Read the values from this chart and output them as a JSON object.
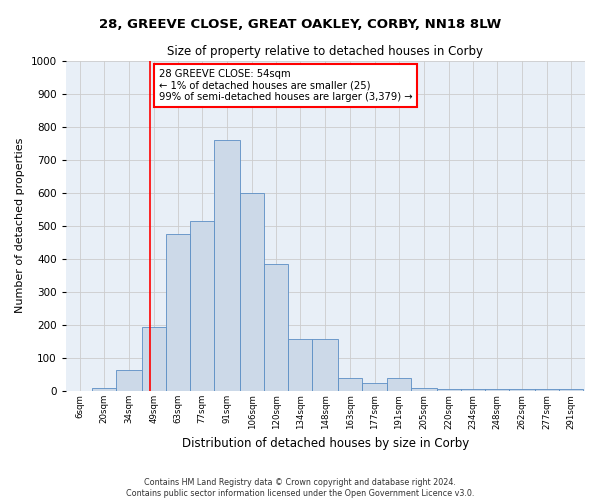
{
  "title1": "28, GREEVE CLOSE, GREAT OAKLEY, CORBY, NN18 8LW",
  "title2": "Size of property relative to detached houses in Corby",
  "xlabel": "Distribution of detached houses by size in Corby",
  "ylabel": "Number of detached properties",
  "bar_labels": [
    "6sqm",
    "20sqm",
    "34sqm",
    "49sqm",
    "63sqm",
    "77sqm",
    "91sqm",
    "106sqm",
    "120sqm",
    "134sqm",
    "148sqm",
    "163sqm",
    "177sqm",
    "191sqm",
    "205sqm",
    "220sqm",
    "234sqm",
    "248sqm",
    "262sqm",
    "277sqm",
    "291sqm"
  ],
  "histogram_values": [
    0,
    10,
    65,
    195,
    475,
    515,
    760,
    600,
    385,
    158,
    158,
    38,
    25,
    40,
    10,
    5,
    5,
    5,
    5,
    5,
    5
  ],
  "bar_edges": [
    6,
    20,
    34,
    49,
    63,
    77,
    91,
    106,
    120,
    134,
    148,
    163,
    177,
    191,
    205,
    220,
    234,
    248,
    262,
    277,
    291,
    305
  ],
  "bar_color": "#ccd9e8",
  "bar_edge_color": "#5b8ec4",
  "red_line_x": 54,
  "annotation_line1": "28 GREEVE CLOSE: 54sqm",
  "annotation_line2": "← 1% of detached houses are smaller (25)",
  "annotation_line3": "99% of semi-detached houses are larger (3,379) →",
  "annotation_box_color": "white",
  "annotation_box_edge": "red",
  "grid_color": "#cccccc",
  "bg_color": "#e8eff7",
  "fig_color": "white",
  "footer1": "Contains HM Land Registry data © Crown copyright and database right 2024.",
  "footer2": "Contains public sector information licensed under the Open Government Licence v3.0.",
  "ylim": [
    0,
    1000
  ],
  "yticks": [
    0,
    100,
    200,
    300,
    400,
    500,
    600,
    700,
    800,
    900,
    1000
  ]
}
